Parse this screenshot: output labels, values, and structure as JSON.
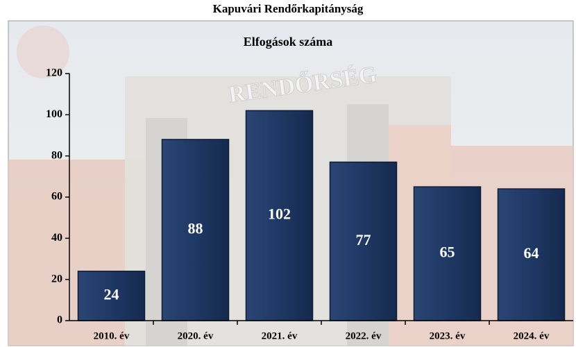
{
  "chart_data": {
    "type": "bar",
    "title": "Kapuvári Rendőrkapitányság",
    "subtitle": "Elfogások száma",
    "categories": [
      "2010. év",
      "2020. év",
      "2021. év",
      "2022. év",
      "2023. év",
      "2024. év"
    ],
    "values": [
      24,
      88,
      102,
      77,
      65,
      64
    ],
    "color": "#1f3864",
    "ylim": [
      0,
      120
    ],
    "yticks": [
      0,
      20,
      40,
      60,
      80,
      100,
      120
    ],
    "grid": false
  }
}
